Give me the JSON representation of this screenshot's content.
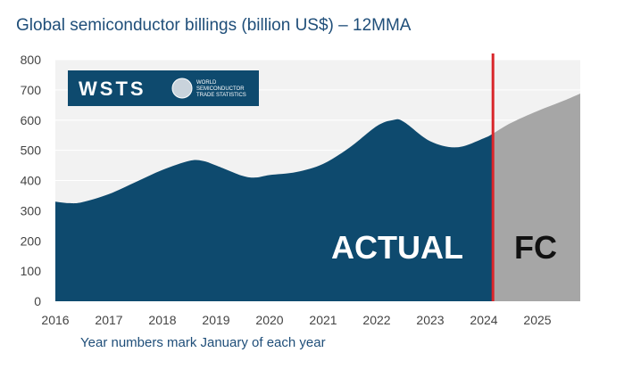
{
  "title": "Global semiconductor billings (billion US$) – 12MMA",
  "footnote": "Year numbers mark January of each year",
  "logo": {
    "wordmark": "WSTS",
    "line1": "WORLD",
    "line2": "SEMICONDUCTOR",
    "line3": "TRADE STATISTICS"
  },
  "colors": {
    "actual": "#0e4a6e",
    "forecast": "#a6a6a6",
    "divider": "#d9262b",
    "plot_bg": "#f2f2f2",
    "grid": "#ffffff",
    "title": "#1f4e79"
  },
  "chart_data": {
    "type": "area",
    "title": "Global semiconductor billings (billion US$) – 12MMA",
    "xlabel": "Year numbers mark January of each year",
    "ylabel": "",
    "xlim": [
      2016,
      2025.8
    ],
    "ylim": [
      0,
      800
    ],
    "y_ticks": [
      0,
      100,
      200,
      300,
      400,
      500,
      600,
      700,
      800
    ],
    "x_ticks": [
      2016,
      2017,
      2018,
      2019,
      2020,
      2021,
      2022,
      2023,
      2024,
      2025
    ],
    "grid": true,
    "divider_x": 2024.17,
    "series": [
      {
        "name": "ACTUAL",
        "x": [
          2016,
          2016.25,
          2016.5,
          2017,
          2017.5,
          2018,
          2018.5,
          2018.75,
          2019,
          2019.5,
          2019.75,
          2020,
          2020.5,
          2021,
          2021.5,
          2022,
          2022.3,
          2022.5,
          2023,
          2023.5,
          2024,
          2024.17
        ],
        "y": [
          330,
          325,
          328,
          355,
          395,
          435,
          465,
          465,
          450,
          415,
          410,
          418,
          428,
          455,
          510,
          580,
          600,
          595,
          530,
          510,
          540,
          555
        ]
      },
      {
        "name": "FC",
        "x": [
          2024.17,
          2024.5,
          2025,
          2025.5,
          2025.8
        ],
        "y": [
          555,
          590,
          630,
          665,
          688
        ]
      }
    ]
  }
}
